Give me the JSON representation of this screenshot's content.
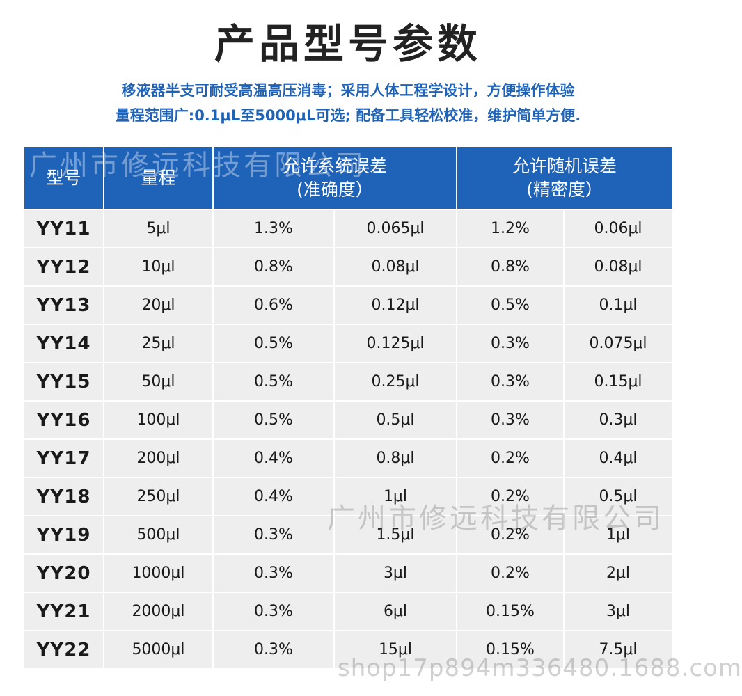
{
  "page": {
    "title": "产品型号参数",
    "subtitle_line1": "移液器半支可耐受高温高压消毒；采用人体工程学设计，方便操作体验",
    "subtitle_line2": "量程范围广:0.1μL至5000μL可选; 配备工具轻松校准，维护简单方便."
  },
  "table": {
    "headers": {
      "model": "型号",
      "range": "量程",
      "systematic_line1": "允许系统误差",
      "systematic_line2": "(准确度）",
      "random_line1": "允许随机误差",
      "random_line2": "(精密度）"
    },
    "rows": [
      {
        "model": "YY11",
        "range": "5μl",
        "sys_pct": "1.3%",
        "sys_val": "0.065μl",
        "rand_pct": "1.2%",
        "rand_val": "0.06μl"
      },
      {
        "model": "YY12",
        "range": "10μl",
        "sys_pct": "0.8%",
        "sys_val": "0.08μl",
        "rand_pct": "0.8%",
        "rand_val": "0.08μl"
      },
      {
        "model": "YY13",
        "range": "20μl",
        "sys_pct": "0.6%",
        "sys_val": "0.12μl",
        "rand_pct": "0.5%",
        "rand_val": "0.1μl"
      },
      {
        "model": "YY14",
        "range": "25μl",
        "sys_pct": "0.5%",
        "sys_val": "0.125μl",
        "rand_pct": "0.3%",
        "rand_val": "0.075μl"
      },
      {
        "model": "YY15",
        "range": "50μl",
        "sys_pct": "0.5%",
        "sys_val": "0.25μl",
        "rand_pct": "0.3%",
        "rand_val": "0.15μl"
      },
      {
        "model": "YY16",
        "range": "100μl",
        "sys_pct": "0.5%",
        "sys_val": "0.5μl",
        "rand_pct": "0.3%",
        "rand_val": "0.3μl"
      },
      {
        "model": "YY17",
        "range": "200μl",
        "sys_pct": "0.4%",
        "sys_val": "0.8μl",
        "rand_pct": "0.2%",
        "rand_val": "0.4μl"
      },
      {
        "model": "YY18",
        "range": "250μl",
        "sys_pct": "0.4%",
        "sys_val": "1μl",
        "rand_pct": "0.2%",
        "rand_val": "0.5μl"
      },
      {
        "model": "YY19",
        "range": "500μl",
        "sys_pct": "0.3%",
        "sys_val": "1.5μl",
        "rand_pct": "0.2%",
        "rand_val": "1μl"
      },
      {
        "model": "YY20",
        "range": "1000μl",
        "sys_pct": "0.3%",
        "sys_val": "3μl",
        "rand_pct": "0.2%",
        "rand_val": "2μl"
      },
      {
        "model": "YY21",
        "range": "2000μl",
        "sys_pct": "0.3%",
        "sys_val": "6μl",
        "rand_pct": "0.15%",
        "rand_val": "3μl"
      },
      {
        "model": "YY22",
        "range": "5000μl",
        "sys_pct": "0.3%",
        "sys_val": "15μl",
        "rand_pct": "0.15%",
        "rand_val": "7.5μl"
      }
    ]
  },
  "watermarks": {
    "company": "广州市修远科技有限公司",
    "shop_url": "shop17p894m336480.1688.com"
  },
  "colors": {
    "header_blue": "#1f63b8",
    "subtitle_blue": "#1f63b8",
    "row_gray": "#eeeeee"
  }
}
